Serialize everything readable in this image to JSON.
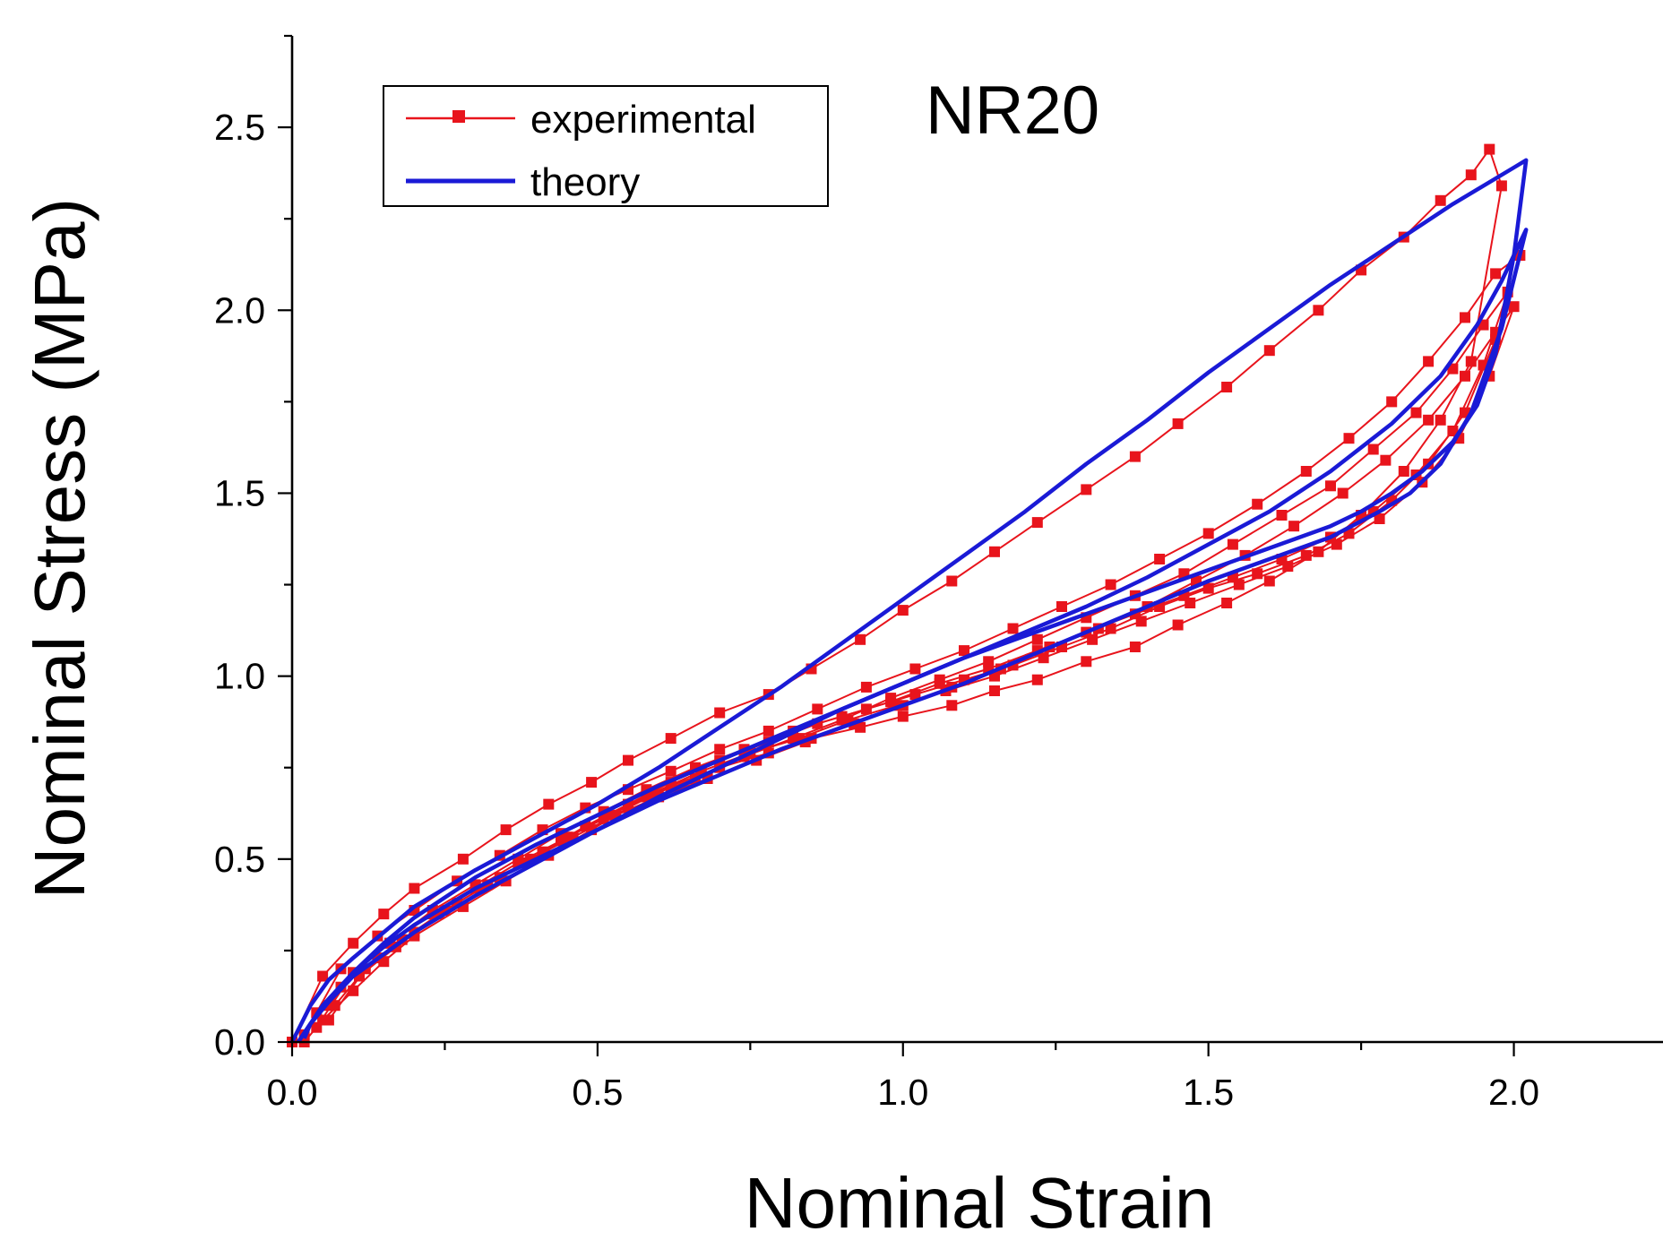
{
  "chart_data": {
    "type": "line",
    "title": "NR20",
    "xlabel": "Nominal Strain",
    "ylabel": "Nominal Stress (MPa)",
    "xlim": [
      0,
      2.25
    ],
    "ylim": [
      0,
      2.75
    ],
    "xticks": [
      "0.0",
      "0.5",
      "1.0",
      "1.5",
      "2.0"
    ],
    "yticks": [
      "0.0",
      "0.5",
      "1.0",
      "1.5",
      "2.0",
      "2.5"
    ],
    "legend": {
      "position": "top-left",
      "entries": [
        "experimental",
        "theory"
      ]
    },
    "colors": {
      "experimental": "#e8141c",
      "theory": "#1a1ad6",
      "axis": "#000000"
    },
    "series": [
      {
        "name": "experimental",
        "marker": "square",
        "loops": [
          {
            "x": [
              0.0,
              0.05,
              0.1,
              0.15,
              0.2,
              0.28,
              0.35,
              0.42,
              0.49,
              0.55,
              0.62,
              0.7,
              0.78,
              0.85,
              0.93,
              1.0,
              1.08,
              1.15,
              1.22,
              1.3,
              1.38,
              1.45,
              1.53,
              1.6,
              1.68,
              1.75,
              1.82,
              1.88,
              1.93,
              1.96,
              1.98,
              1.93,
              1.88,
              1.82,
              1.75,
              1.68,
              1.6,
              1.53,
              1.45,
              1.38,
              1.3,
              1.22,
              1.15,
              1.08,
              1.0,
              0.93,
              0.85,
              0.78,
              0.7,
              0.62,
              0.55,
              0.49,
              0.42,
              0.35,
              0.28,
              0.2,
              0.15,
              0.1,
              0.05,
              0.02
            ],
            "y": [
              0.0,
              0.18,
              0.27,
              0.35,
              0.42,
              0.5,
              0.58,
              0.65,
              0.71,
              0.77,
              0.83,
              0.9,
              0.95,
              1.02,
              1.1,
              1.18,
              1.26,
              1.34,
              1.42,
              1.51,
              1.6,
              1.69,
              1.79,
              1.89,
              2.0,
              2.11,
              2.2,
              2.3,
              2.37,
              2.44,
              2.34,
              1.86,
              1.7,
              1.56,
              1.44,
              1.34,
              1.26,
              1.2,
              1.14,
              1.08,
              1.04,
              0.99,
              0.96,
              0.92,
              0.89,
              0.86,
              0.83,
              0.79,
              0.75,
              0.7,
              0.64,
              0.58,
              0.51,
              0.44,
              0.37,
              0.29,
              0.22,
              0.14,
              0.06,
              0.0
            ]
          },
          {
            "x": [
              0.02,
              0.08,
              0.14,
              0.2,
              0.27,
              0.34,
              0.41,
              0.48,
              0.55,
              0.62,
              0.7,
              0.78,
              0.86,
              0.94,
              1.02,
              1.1,
              1.18,
              1.26,
              1.34,
              1.42,
              1.5,
              1.58,
              1.66,
              1.73,
              1.8,
              1.86,
              1.92,
              1.97,
              2.01,
              1.97,
              1.92,
              1.86,
              1.8,
              1.73,
              1.66,
              1.58,
              1.5,
              1.42,
              1.34,
              1.26,
              1.18,
              1.1,
              1.02,
              0.94,
              0.86,
              0.78,
              0.7,
              0.62,
              0.55,
              0.48,
              0.41,
              0.34,
              0.27,
              0.2,
              0.14,
              0.08,
              0.04
            ],
            "y": [
              0.02,
              0.2,
              0.29,
              0.36,
              0.44,
              0.51,
              0.58,
              0.64,
              0.69,
              0.74,
              0.8,
              0.85,
              0.91,
              0.97,
              1.02,
              1.07,
              1.13,
              1.19,
              1.25,
              1.32,
              1.39,
              1.47,
              1.56,
              1.65,
              1.75,
              1.86,
              1.98,
              2.1,
              2.15,
              1.92,
              1.72,
              1.58,
              1.48,
              1.39,
              1.33,
              1.28,
              1.24,
              1.19,
              1.13,
              1.08,
              1.03,
              0.99,
              0.95,
              0.91,
              0.87,
              0.82,
              0.77,
              0.71,
              0.65,
              0.59,
              0.52,
              0.45,
              0.38,
              0.3,
              0.23,
              0.15,
              0.08
            ]
          },
          {
            "x": [
              0.04,
              0.1,
              0.16,
              0.23,
              0.3,
              0.37,
              0.44,
              0.51,
              0.58,
              0.66,
              0.74,
              0.82,
              0.9,
              0.98,
              1.06,
              1.14,
              1.22,
              1.3,
              1.38,
              1.46,
              1.54,
              1.62,
              1.7,
              1.77,
              1.84,
              1.9,
              1.95,
              1.99,
              1.95,
              1.9,
              1.84,
              1.77,
              1.7,
              1.62,
              1.54,
              1.46,
              1.38,
              1.3,
              1.22,
              1.14,
              1.06,
              0.98,
              0.9,
              0.82,
              0.74,
              0.66,
              0.58,
              0.51,
              0.44,
              0.37,
              0.3,
              0.23,
              0.16,
              0.1,
              0.06
            ],
            "y": [
              0.04,
              0.19,
              0.27,
              0.35,
              0.42,
              0.49,
              0.55,
              0.61,
              0.67,
              0.72,
              0.78,
              0.83,
              0.88,
              0.94,
              0.99,
              1.04,
              1.1,
              1.16,
              1.22,
              1.28,
              1.36,
              1.44,
              1.52,
              1.62,
              1.72,
              1.84,
              1.96,
              2.05,
              1.85,
              1.67,
              1.55,
              1.45,
              1.38,
              1.32,
              1.27,
              1.22,
              1.17,
              1.12,
              1.07,
              1.02,
              0.98,
              0.93,
              0.89,
              0.85,
              0.8,
              0.75,
              0.69,
              0.63,
              0.57,
              0.5,
              0.43,
              0.36,
              0.27,
              0.19,
              0.1
            ]
          },
          {
            "x": [
              0.06,
              0.12,
              0.18,
              0.25,
              0.32,
              0.39,
              0.46,
              0.53,
              0.6,
              0.68,
              0.76,
              0.84,
              0.92,
              1.0,
              1.08,
              1.16,
              1.24,
              1.32,
              1.4,
              1.48,
              1.56,
              1.64,
              1.72,
              1.79,
              1.86,
              1.92,
              1.97,
              2.0,
              1.96,
              1.91,
              1.85,
              1.78,
              1.71,
              1.63,
              1.55,
              1.47,
              1.39,
              1.31,
              1.23,
              1.15,
              1.07,
              0.99,
              0.91,
              0.83,
              0.75,
              0.67,
              0.59,
              0.52,
              0.45,
              0.38,
              0.31,
              0.24,
              0.17,
              0.11,
              0.07
            ],
            "y": [
              0.06,
              0.2,
              0.28,
              0.36,
              0.43,
              0.5,
              0.56,
              0.62,
              0.67,
              0.72,
              0.77,
              0.82,
              0.87,
              0.92,
              0.97,
              1.02,
              1.08,
              1.13,
              1.19,
              1.26,
              1.33,
              1.41,
              1.5,
              1.59,
              1.7,
              1.82,
              1.94,
              2.01,
              1.82,
              1.65,
              1.53,
              1.43,
              1.36,
              1.3,
              1.25,
              1.2,
              1.15,
              1.1,
              1.05,
              1.0,
              0.96,
              0.92,
              0.88,
              0.83,
              0.79,
              0.74,
              0.68,
              0.62,
              0.56,
              0.49,
              0.42,
              0.35,
              0.26,
              0.18,
              0.1
            ]
          }
        ]
      },
      {
        "name": "theory",
        "marker": "none",
        "loops": [
          {
            "x": [
              0.0,
              0.03,
              0.06,
              0.1,
              0.15,
              0.2,
              0.3,
              0.4,
              0.5,
              0.6,
              0.7,
              0.8,
              0.9,
              1.0,
              1.1,
              1.2,
              1.3,
              1.4,
              1.5,
              1.6,
              1.7,
              1.8,
              1.9,
              2.0,
              2.02,
              2.0,
              1.97,
              1.94,
              1.9,
              1.85,
              1.8,
              1.75,
              1.7,
              1.6,
              1.5,
              1.4,
              1.3,
              1.2,
              1.1,
              1.0,
              0.9,
              0.8,
              0.7,
              0.6,
              0.5,
              0.4,
              0.3,
              0.2,
              0.15,
              0.1,
              0.06,
              0.03,
              0.01
            ],
            "y": [
              0.0,
              0.1,
              0.17,
              0.23,
              0.3,
              0.37,
              0.47,
              0.56,
              0.65,
              0.75,
              0.86,
              0.97,
              1.09,
              1.21,
              1.33,
              1.45,
              1.58,
              1.7,
              1.83,
              1.95,
              2.07,
              2.18,
              2.29,
              2.39,
              2.41,
              2.15,
              1.88,
              1.74,
              1.64,
              1.56,
              1.5,
              1.45,
              1.41,
              1.35,
              1.29,
              1.23,
              1.17,
              1.11,
              1.05,
              0.98,
              0.91,
              0.83,
              0.75,
              0.67,
              0.58,
              0.49,
              0.4,
              0.3,
              0.24,
              0.18,
              0.11,
              0.05,
              0.0
            ]
          },
          {
            "x": [
              0.01,
              0.05,
              0.1,
              0.15,
              0.2,
              0.3,
              0.4,
              0.5,
              0.6,
              0.7,
              0.8,
              0.9,
              1.0,
              1.1,
              1.2,
              1.3,
              1.4,
              1.5,
              1.6,
              1.7,
              1.8,
              1.88,
              1.94,
              1.98,
              2.02,
              1.98,
              1.93,
              1.88,
              1.83,
              1.78,
              1.7,
              1.6,
              1.5,
              1.4,
              1.3,
              1.2,
              1.1,
              1.0,
              0.9,
              0.8,
              0.7,
              0.6,
              0.5,
              0.4,
              0.3,
              0.2,
              0.15,
              0.1,
              0.06,
              0.03,
              0.02
            ],
            "y": [
              0.0,
              0.1,
              0.19,
              0.27,
              0.34,
              0.45,
              0.54,
              0.62,
              0.7,
              0.77,
              0.84,
              0.91,
              0.98,
              1.05,
              1.12,
              1.19,
              1.27,
              1.36,
              1.45,
              1.56,
              1.69,
              1.82,
              1.96,
              2.08,
              2.22,
              1.95,
              1.72,
              1.58,
              1.5,
              1.45,
              1.38,
              1.32,
              1.26,
              1.19,
              1.12,
              1.05,
              0.98,
              0.92,
              0.86,
              0.8,
              0.73,
              0.66,
              0.58,
              0.5,
              0.42,
              0.32,
              0.26,
              0.19,
              0.11,
              0.05,
              0.01
            ]
          }
        ]
      }
    ]
  }
}
